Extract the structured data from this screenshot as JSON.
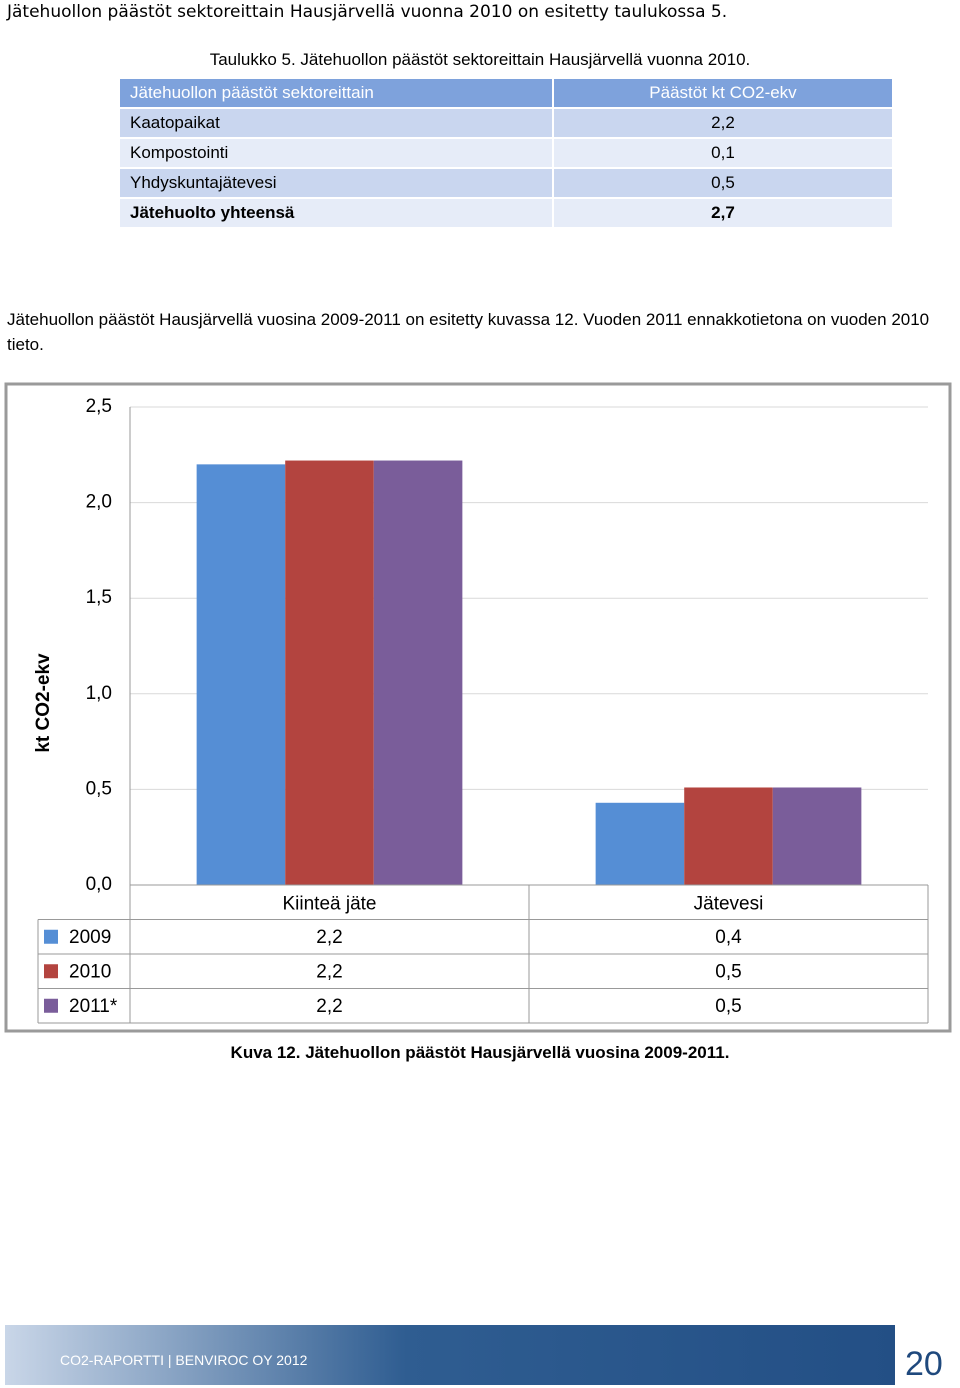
{
  "intro": "Jätehuollon päästöt sektoreittain Hausjärvellä vuonna 2010 on esitetty taulukossa 5.",
  "table": {
    "caption": "Taulukko 5. Jätehuollon päästöt sektoreittain Hausjärvellä vuonna 2010.",
    "header": [
      "Jätehuollon päästöt sektoreittain",
      "Päästöt kt CO2-ekv"
    ],
    "rows": [
      [
        "Kaatopaikat",
        "2,2"
      ],
      [
        "Kompostointi",
        "0,1"
      ],
      [
        "Yhdyskuntajätevesi",
        "0,5"
      ],
      [
        "Jätehuolto yhteensä",
        "2,7"
      ]
    ]
  },
  "paragraph": "Jätehuollon päästöt Hausjärvellä vuosina 2009-2011 on esitetty kuvassa 12. Vuoden 2011 ennakkotietona on vuoden 2010 tieto.",
  "chart_data": {
    "type": "bar",
    "ylabel": "kt CO2-ekv",
    "categories": [
      "Kiinteä jäte",
      "Jätevesi"
    ],
    "series": [
      {
        "name": "2009",
        "color": "#558ed5",
        "values": [
          2.2,
          0.43
        ],
        "value_labels": [
          "2,2",
          "0,4"
        ]
      },
      {
        "name": "2010",
        "color": "#b3443f",
        "values": [
          2.22,
          0.51
        ],
        "value_labels": [
          "2,2",
          "0,5"
        ]
      },
      {
        "name": "2011*",
        "color": "#7a5d9a",
        "values": [
          2.22,
          0.51
        ],
        "value_labels": [
          "2,2",
          "0,5"
        ]
      }
    ],
    "ylim": [
      0,
      2.5
    ],
    "yticks": [
      {
        "value": 0,
        "label": "0,0"
      },
      {
        "value": 0.5,
        "label": "0,5"
      },
      {
        "value": 1,
        "label": "1,0"
      },
      {
        "value": 1.5,
        "label": "1,5"
      },
      {
        "value": 2,
        "label": "2,0"
      },
      {
        "value": 2.5,
        "label": "2,5"
      }
    ]
  },
  "figure_caption": "Kuva 12. Jätehuollon päästöt Hausjärvellä vuosina 2009-2011.",
  "footer": {
    "text": "CO2-RAPORTTI | BENVIROC OY 2012",
    "page": "20"
  }
}
